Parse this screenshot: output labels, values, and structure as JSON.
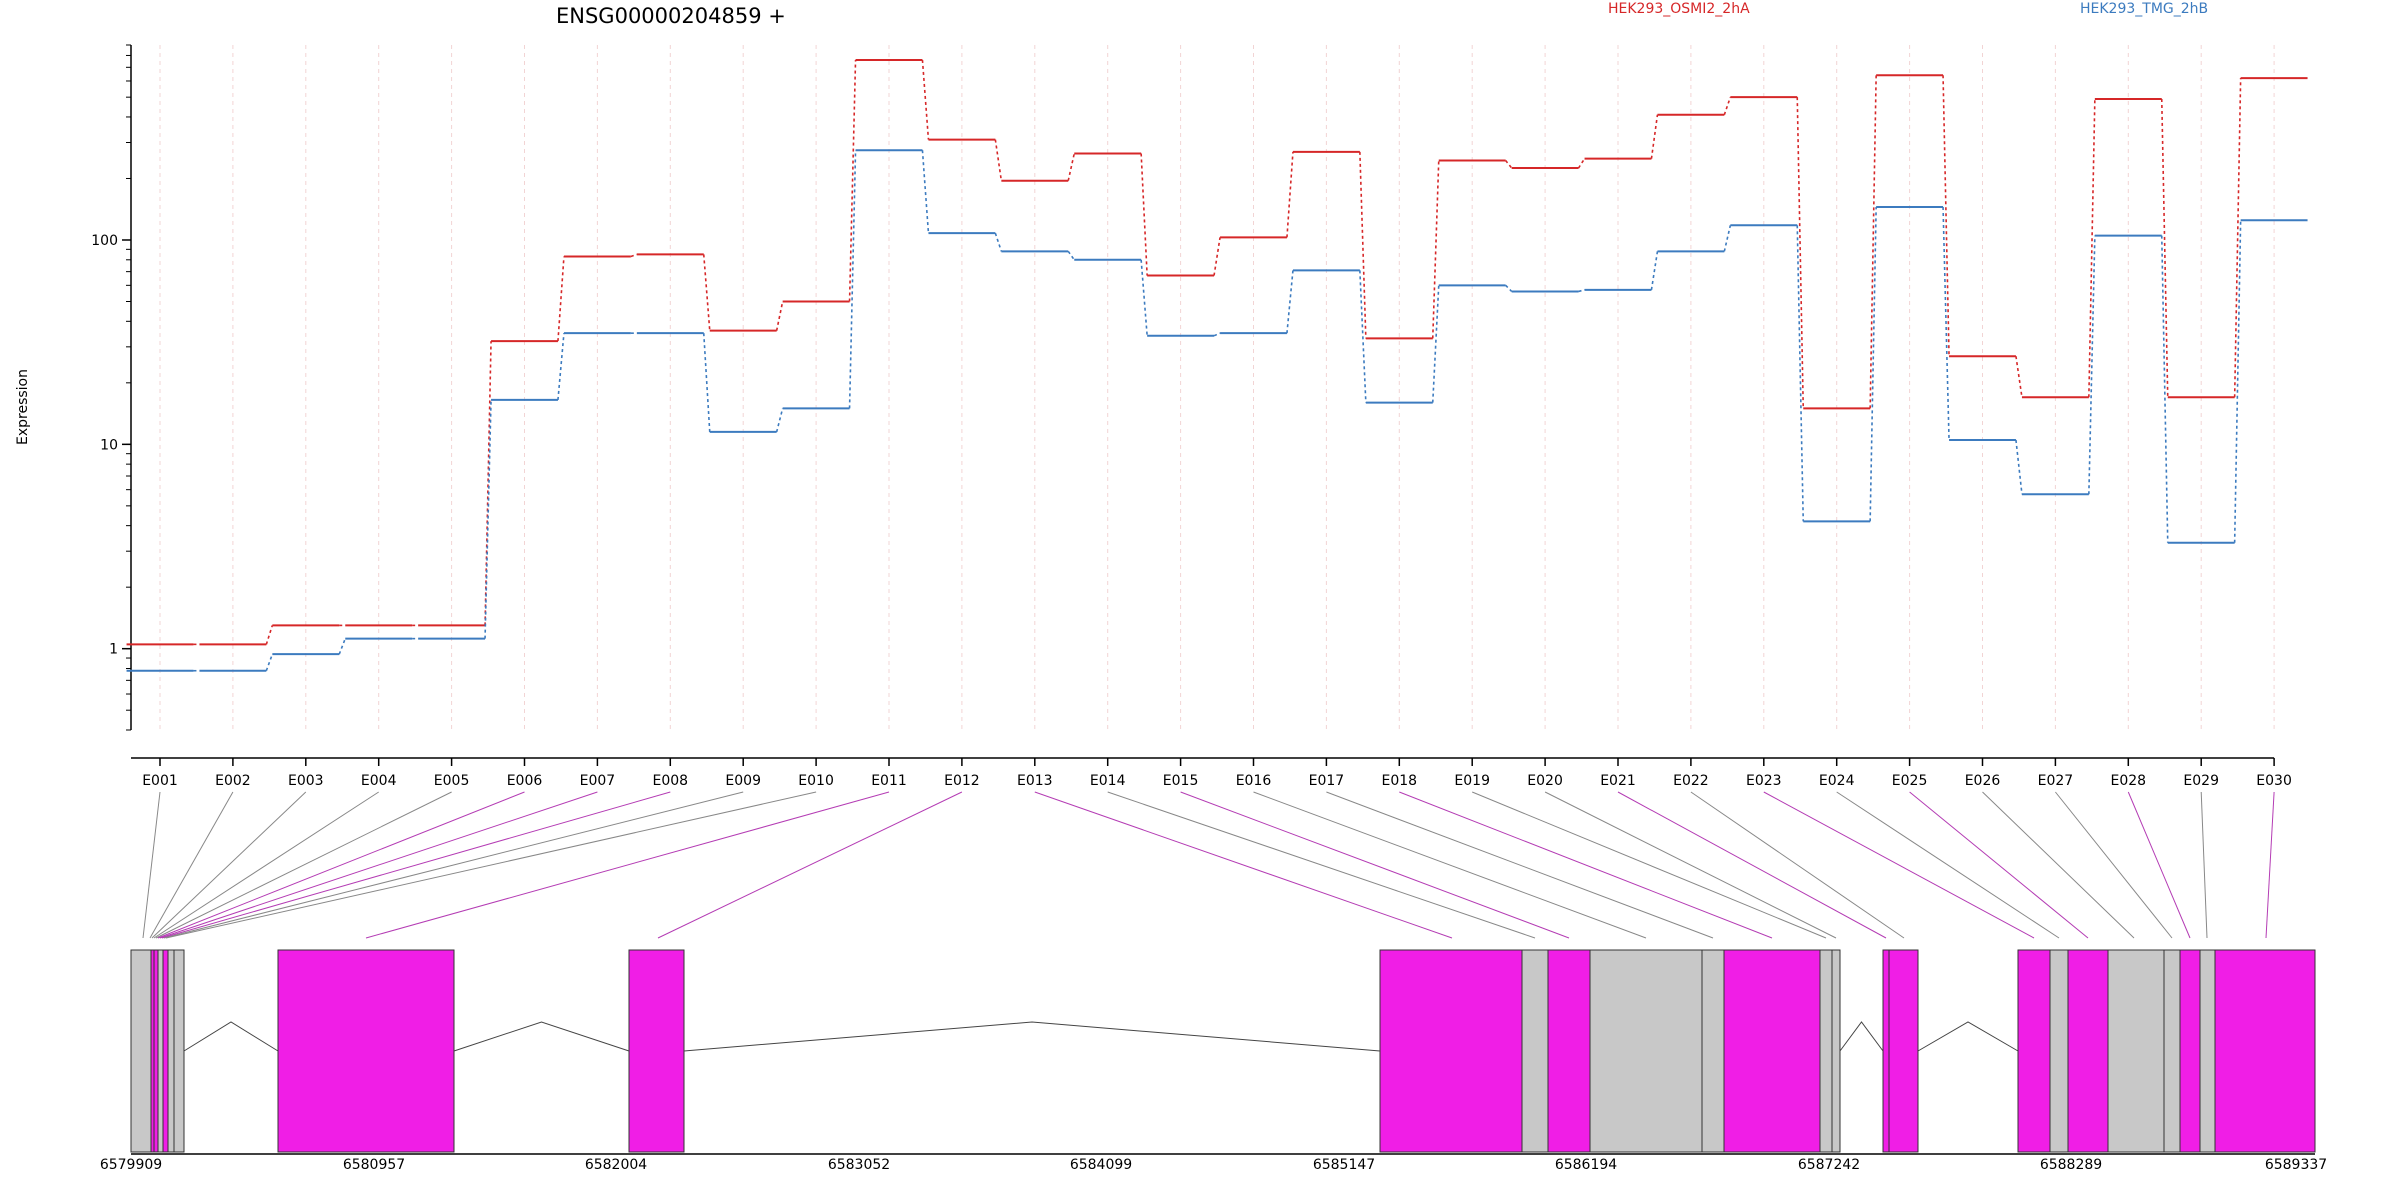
{
  "chart_data": {
    "type": "line",
    "title": "ENSG00000204859 +",
    "ylabel": "Expression",
    "y_scale": "log",
    "ylim": [
      0.4,
      900
    ],
    "y_ticks": [
      1,
      10,
      100
    ],
    "y_tick_labels": [
      "1",
      "10",
      "100"
    ],
    "categories": [
      "E001",
      "E002",
      "E003",
      "E004",
      "E005",
      "E006",
      "E007",
      "E008",
      "E009",
      "E010",
      "E011",
      "E012",
      "E013",
      "E014",
      "E015",
      "E016",
      "E017",
      "E018",
      "E019",
      "E020",
      "E021",
      "E022",
      "E023",
      "E024",
      "E025",
      "E026",
      "E027",
      "E028",
      "E029",
      "E030"
    ],
    "series": [
      {
        "name": "HEK293_OSMI2_2hA",
        "color": "#d62728",
        "values": [
          1.05,
          1.05,
          1.3,
          1.3,
          1.3,
          32,
          83,
          85,
          36,
          50,
          760,
          310,
          195,
          265,
          67,
          103,
          270,
          33,
          245,
          225,
          250,
          410,
          500,
          15,
          640,
          27,
          17,
          490,
          17,
          620
        ]
      },
      {
        "name": "HEK293_TMG_2hB",
        "color": "#3c7bbf",
        "values": [
          0.78,
          0.78,
          0.94,
          1.12,
          1.12,
          16.5,
          35,
          35,
          11.5,
          15,
          275,
          108,
          88,
          80,
          34,
          35,
          71,
          16,
          60,
          56,
          57,
          88,
          118,
          4.2,
          145,
          10.5,
          5.7,
          105,
          3.3,
          125
        ]
      }
    ],
    "genomic_ticks": [
      "6579909",
      "6580957",
      "6582004",
      "6583052",
      "6584099",
      "6585147",
      "6586194",
      "6587242",
      "6588289",
      "6589337"
    ],
    "exon_colors": {
      "highlight": "#f01ee6",
      "normal": "#c8c8c8"
    }
  }
}
